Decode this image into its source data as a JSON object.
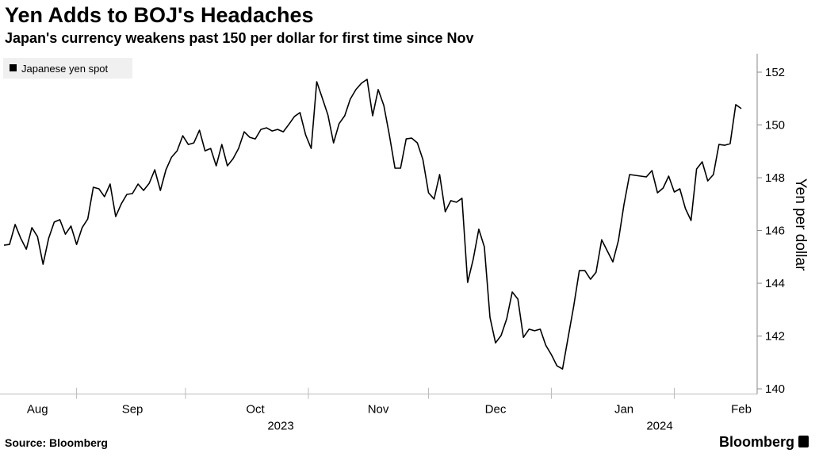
{
  "chart_data": {
    "type": "line",
    "title": "Yen Adds to BOJ's Headaches",
    "subtitle": "Japan's currency weakens past 150 per dollar for first time since Nov",
    "y_label": "Yen per dollar",
    "source": "Source: Bloomberg",
    "brand": "Bloomberg",
    "x_groups": [
      "2023",
      "2024"
    ],
    "categories": [
      null,
      null,
      null,
      null,
      null,
      null,
      "Aug",
      null,
      null,
      null,
      null,
      null,
      null,
      null,
      null,
      null,
      null,
      null,
      null,
      null,
      null,
      null,
      null,
      "Sep",
      null,
      null,
      null,
      null,
      null,
      null,
      null,
      null,
      null,
      null,
      null,
      null,
      null,
      null,
      null,
      null,
      null,
      null,
      null,
      null,
      null,
      "Oct",
      null,
      null,
      null,
      null,
      null,
      null,
      null,
      null,
      null,
      null,
      null,
      null,
      null,
      null,
      null,
      null,
      null,
      null,
      null,
      null,
      null,
      "Nov",
      null,
      null,
      null,
      null,
      null,
      null,
      null,
      null,
      null,
      null,
      null,
      null,
      null,
      null,
      null,
      null,
      null,
      null,
      null,
      null,
      "Dec",
      null,
      null,
      null,
      null,
      null,
      null,
      null,
      null,
      null,
      null,
      null,
      null,
      null,
      null,
      null,
      null,
      null,
      null,
      null,
      null,
      null,
      null,
      "Jan",
      null,
      null,
      null,
      null,
      null,
      null,
      null,
      null,
      null,
      null,
      null,
      null,
      null,
      null,
      null,
      null,
      null,
      null,
      null,
      null,
      "Feb"
    ],
    "series": [
      {
        "name": "Japanese yen spot",
        "color": "#000000",
        "values": [
          145.44,
          145.47,
          146.23,
          145.71,
          145.29,
          146.11,
          145.77,
          144.72,
          145.71,
          146.32,
          146.41,
          145.86,
          146.17,
          145.47,
          146.11,
          146.44,
          147.64,
          147.58,
          147.28,
          147.76,
          146.53,
          147.01,
          147.37,
          147.4,
          147.76,
          147.52,
          147.79,
          148.3,
          147.52,
          148.3,
          148.78,
          149.02,
          149.59,
          149.26,
          149.32,
          149.8,
          149.02,
          149.11,
          148.45,
          149.26,
          148.45,
          148.72,
          149.11,
          149.74,
          149.53,
          149.47,
          149.83,
          149.89,
          149.77,
          149.83,
          149.74,
          150.02,
          150.32,
          150.47,
          149.62,
          149.11,
          151.64,
          151.01,
          150.38,
          149.32,
          150.05,
          150.35,
          150.98,
          151.34,
          151.58,
          151.73,
          150.35,
          151.34,
          150.74,
          149.62,
          148.36,
          148.36,
          149.47,
          149.5,
          149.32,
          148.69,
          147.43,
          147.19,
          148.12,
          146.71,
          147.13,
          147.07,
          147.22,
          144.03,
          144.9,
          146.05,
          145.38,
          142.71,
          141.74,
          142.02,
          142.65,
          143.67,
          143.4,
          141.95,
          142.26,
          142.2,
          142.26,
          141.65,
          141.29,
          140.87,
          140.75,
          141.95,
          143.13,
          144.48,
          144.48,
          144.15,
          144.42,
          145.65,
          145.23,
          144.81,
          145.62,
          146.98,
          148.12,
          148.09,
          148.06,
          148.03,
          148.27,
          147.43,
          147.61,
          148.06,
          147.46,
          147.58,
          146.83,
          146.38,
          148.33,
          148.6,
          147.88,
          148.12,
          149.26,
          149.23,
          149.29,
          150.77,
          150.62
        ]
      }
    ],
    "ylim": [
      139.8,
      152.7
    ],
    "yticks": [
      140,
      142,
      144,
      146,
      148,
      150,
      152
    ],
    "legend": "top-left"
  }
}
